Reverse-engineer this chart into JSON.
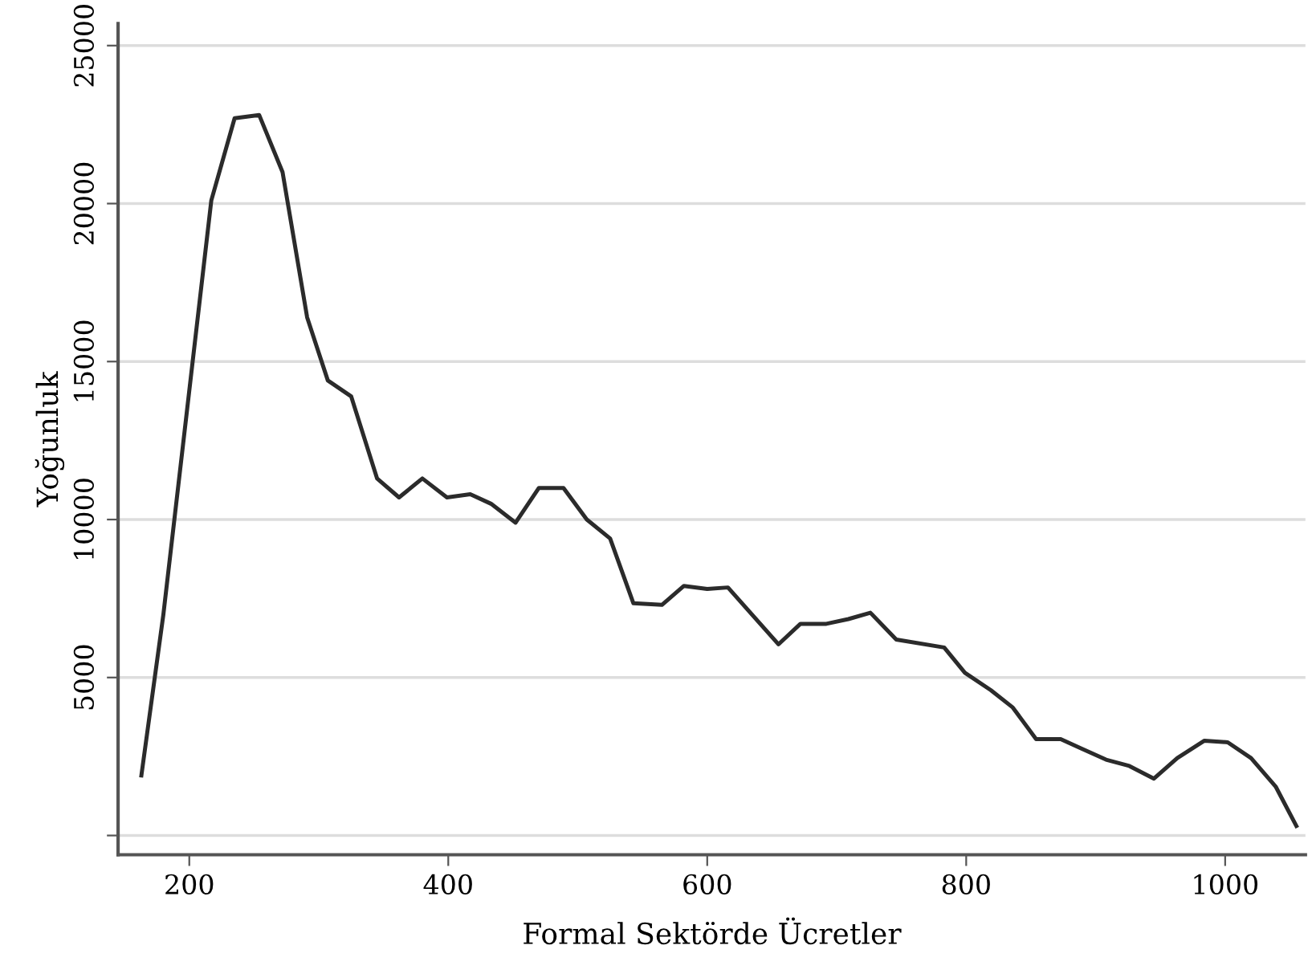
{
  "chart_data": {
    "type": "line",
    "xlabel": "Formal Sektörde Ücretler",
    "ylabel": "Yoğunluk",
    "x": [
      163,
      180,
      217,
      235,
      254,
      272,
      291,
      307,
      325,
      345,
      362,
      380,
      399,
      417,
      433,
      452,
      470,
      489,
      507,
      525,
      543,
      565,
      582,
      600,
      616,
      655,
      672,
      692,
      709,
      726,
      746,
      783,
      799,
      819,
      836,
      854,
      873,
      889,
      908,
      926,
      945,
      963,
      984,
      1002,
      1020,
      1039,
      1055
    ],
    "series": [
      {
        "color": "#2b2b2b",
        "values": [
          1900,
          7000,
          20100,
          22700,
          22800,
          21000,
          16400,
          14400,
          13900,
          11300,
          10700,
          11300,
          10700,
          10800,
          10500,
          9900,
          11000,
          11000,
          10000,
          9400,
          7350,
          7300,
          7900,
          7800,
          7850,
          6050,
          6700,
          6700,
          6850,
          7050,
          6200,
          5950,
          5150,
          4600,
          4050,
          3050,
          3050,
          2750,
          2400,
          2200,
          1800,
          2450,
          3000,
          2950,
          2450,
          1550,
          300
        ]
      }
    ],
    "xlim": [
      145,
      1062
    ],
    "ylim": [
      -610,
      25700
    ],
    "xticks": [
      200,
      400,
      600,
      800,
      1000
    ],
    "yticks": [
      {
        "value": 0,
        "label": null
      },
      5000,
      10000,
      15000,
      20000,
      25000
    ],
    "grid": "y",
    "marker": "none",
    "line_style": "solid"
  }
}
